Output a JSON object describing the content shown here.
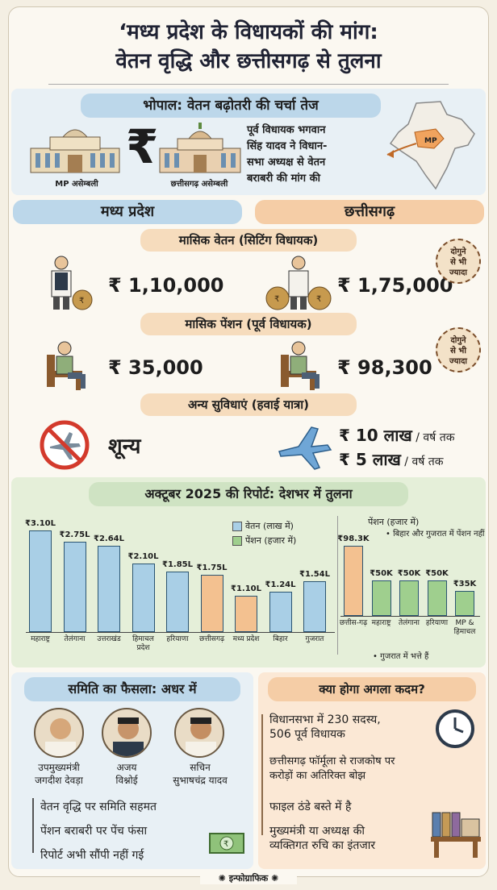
{
  "header": {
    "title_line1": "‘मध्य प्रदेश के विधायकों की मांग:",
    "title_line2": "वेतन वृद्धि और छत्तीसगढ़ से तुलना"
  },
  "bhopal": {
    "heading": "भोपाल: वेतन बढ़ोतरी की चर्चा तेज",
    "mp_building": "MP असेम्बली",
    "cg_building": "छत्तीसगढ़ असेम्बली",
    "note": [
      "पूर्व विधायक भगवान",
      "सिंह यादव ने विधान-",
      "सभा अध्यक्ष से वेतन",
      "बराबरी की मांग की"
    ],
    "map_label": "MP",
    "rupee": "₹"
  },
  "compare": {
    "left_state": "मध्य प्रदेश",
    "right_state": "छत्तीसगढ़",
    "salary_heading": "मासिक वेतन (सिटिंग विधायक)",
    "mp_salary": "₹ 1,10,000",
    "cg_salary": "₹ 1,75,000",
    "pension_heading": "मासिक पेंशन (पूर्व विधायक)",
    "mp_pension": "₹ 35,000",
    "cg_pension": "₹ 98,300",
    "stamp": [
      "दोगुने",
      "से भी",
      "ज्यादा"
    ],
    "facilities_heading": "अन्य सुविधाएं (हवाई यात्रा)",
    "mp_facility": "शून्य",
    "cg_facility_1": "₹ 10 लाख",
    "cg_facility_1_suffix": " / वर्ष तक",
    "cg_facility_2": "₹ 5 लाख",
    "cg_facility_2_suffix": " / वर्ष तक"
  },
  "report": {
    "heading": "अक्टूबर 2025 की रिपोर्ट: देशभर में तुलना",
    "legend_salary": "वेतन (लाख में)",
    "legend_pension": "पेंशन (हजार में)",
    "pension_chart_title": "पेंशन (हजार में)",
    "pension_note": "• बिहार और गुजरात में पेंशन नहीं",
    "gujarat_note": "• गुजरात में भत्ते हैं"
  },
  "chart_data": [
    {
      "type": "bar",
      "categories": [
        "महाराष्ट्र",
        "तेलंगाना",
        "उत्तराखंड",
        "हिमाचल प्रदेश",
        "हरियाणा",
        "छत्तीसगढ़",
        "मध्य प्रदेश",
        "बिहार",
        "गुजरात"
      ],
      "values": [
        3.1,
        2.75,
        2.64,
        2.1,
        1.85,
        1.75,
        1.1,
        1.24,
        1.54
      ],
      "value_labels": [
        "₹3.10L",
        "₹2.75L",
        "₹2.64L",
        "₹2.10L",
        "₹1.85L",
        "₹1.75L",
        "₹1.10L",
        "₹1.24L",
        "₹1.54L"
      ],
      "highlight": [
        "#a9cfe6",
        "#a9cfe6",
        "#a9cfe6",
        "#a9cfe6",
        "#a9cfe6",
        "#f3c190",
        "#f3c190",
        "#a9cfe6",
        "#a9cfe6"
      ],
      "ylim": [
        0,
        3.2
      ]
    },
    {
      "type": "bar",
      "categories": [
        "छत्तीस-गढ़",
        "महाराष्ट्र",
        "तेलंगाना",
        "हरियाणा",
        "MP & हिमाचल"
      ],
      "values": [
        98.3,
        50,
        50,
        50,
        35
      ],
      "value_labels": [
        "₹98.3K",
        "₹50K",
        "₹50K",
        "₹50K",
        "₹35K"
      ],
      "highlight": [
        "#f3c190",
        "#9fcf8e",
        "#9fcf8e",
        "#9fcf8e",
        "#9fcf8e"
      ],
      "ylim": [
        0,
        100
      ]
    }
  ],
  "committee": {
    "heading": "समिति का फैसला: अधर में",
    "people": [
      {
        "name_1": "उपमुख्यमंत्री",
        "name_2": "जगदीश देवड़ा"
      },
      {
        "name_1": "अजय",
        "name_2": "विश्नोई"
      },
      {
        "name_1": "सचिन",
        "name_2": "सुभाषचंद्र यादव"
      }
    ],
    "points": [
      "वेतन वृद्धि पर समिति सहमत",
      "पेंशन बराबरी पर पेंच फंसा",
      "रिपोर्ट अभी सौंपी नहीं गई"
    ]
  },
  "next": {
    "heading": "क्या होगा अगला कदम?",
    "points": [
      [
        "विधानसभा में 230 सदस्य,",
        "506 पूर्व विधायक"
      ],
      [
        "छत्तीसगढ़ फॉर्मूला से राजकोष पर",
        "करोड़ों का अतिरिक्त बोझ"
      ],
      [
        "फाइल ठंडे बस्ते में है",
        ""
      ],
      [
        "मुख्यमंत्री या अध्यक्ष की",
        "व्यक्तिगत रुचि का इंतजार"
      ]
    ]
  },
  "footer": {
    "label": "इन्फोग्राफिक"
  }
}
